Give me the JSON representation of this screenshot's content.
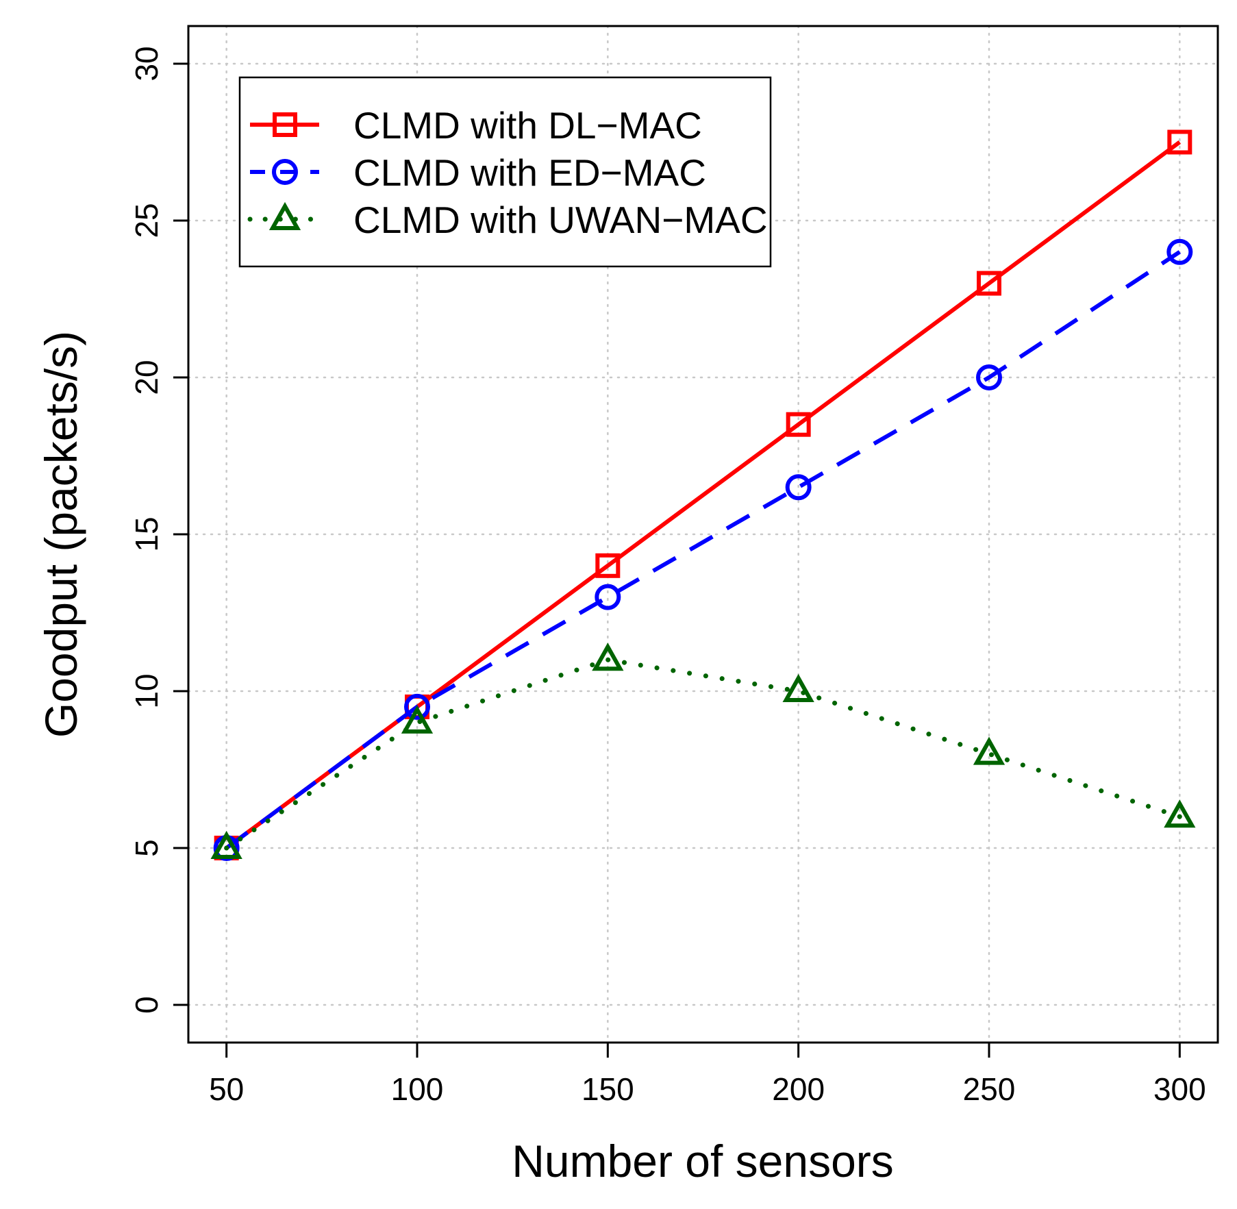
{
  "chart_data": {
    "type": "line",
    "title": "",
    "xlabel": "Number of sensors",
    "ylabel": "Goodput (packets/s)",
    "x": [
      50,
      100,
      150,
      200,
      250,
      300
    ],
    "xticks": [
      50,
      100,
      150,
      200,
      250,
      300
    ],
    "yticks": [
      0,
      5,
      10,
      15,
      20,
      25,
      30
    ],
    "xlim": [
      40,
      310
    ],
    "ylim": [
      -1.2,
      31.2
    ],
    "grid": true,
    "legend_position": "top-left",
    "series": [
      {
        "name": "CLMD with DL−MAC",
        "color": "#ff0000",
        "line": "solid",
        "marker": "square",
        "values": [
          5,
          9.5,
          14,
          18.5,
          23,
          27.5
        ]
      },
      {
        "name": "CLMD with ED−MAC",
        "color": "#0000ff",
        "line": "dashed",
        "marker": "circle",
        "values": [
          5,
          9.5,
          13,
          16.5,
          20,
          24
        ]
      },
      {
        "name": "CLMD with UWAN−MAC",
        "color": "#006400",
        "line": "dotted",
        "marker": "triangle",
        "values": [
          5,
          9,
          11,
          10,
          8,
          6
        ]
      }
    ]
  }
}
